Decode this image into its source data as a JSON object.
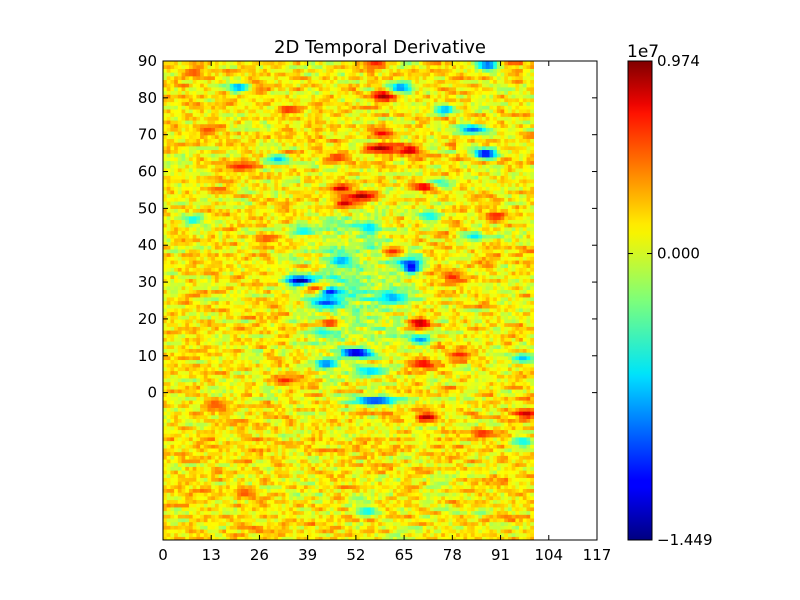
{
  "chart_data": {
    "type": "heatmap",
    "title": "2D Temporal Derivative",
    "xlabel": "",
    "ylabel": "",
    "x_ticks": [
      0,
      13,
      26,
      39,
      52,
      65,
      78,
      91,
      104,
      117
    ],
    "y_ticks": [
      0,
      10,
      20,
      30,
      40,
      50,
      60,
      70,
      80,
      90
    ],
    "xlim": [
      0,
      117
    ],
    "ylim": [
      -40,
      90
    ],
    "data_extent": {
      "x": [
        0,
        100
      ],
      "y": [
        -40,
        90
      ]
    },
    "colormap": "jet",
    "colorbar": {
      "min": -1.449,
      "max": 0.974,
      "zero": 0.0,
      "tick_labels": [
        "0.974",
        "0.000",
        "−1.449"
      ],
      "offset_label": "1e7"
    },
    "grid": false,
    "patterns": {
      "background_level": 0.1,
      "blue_streaks": [
        {
          "x": 20.5,
          "y": 83,
          "len": 6,
          "v": -0.8
        },
        {
          "x": 8,
          "y": 47,
          "len": 6,
          "v": -0.6
        },
        {
          "x": 37,
          "y": 30.5,
          "len": 8,
          "v": -1.4
        },
        {
          "x": 44.5,
          "y": 27.5,
          "len": 6,
          "v": -1.3
        },
        {
          "x": 44,
          "y": 24.5,
          "len": 8,
          "v": -1.0
        },
        {
          "x": 52,
          "y": 11,
          "len": 8,
          "v": -1.4
        },
        {
          "x": 57.5,
          "y": -2,
          "len": 12,
          "v": -1.1
        },
        {
          "x": 64,
          "y": 83,
          "len": 6,
          "v": -0.9
        },
        {
          "x": 87,
          "y": 65,
          "len": 6,
          "v": -1.3
        },
        {
          "x": 83.5,
          "y": 71.5,
          "len": 8,
          "v": -0.9
        },
        {
          "x": 87.5,
          "y": 89,
          "len": 6,
          "v": -1.0
        },
        {
          "x": 73.5,
          "y": 57,
          "len": 8,
          "v": -0.6
        },
        {
          "x": 66.5,
          "y": 35.5,
          "len": 8,
          "v": -0.9
        },
        {
          "x": 67,
          "y": 34,
          "len": 4,
          "v": -1.3
        },
        {
          "x": 69.5,
          "y": 14.5,
          "len": 6,
          "v": -0.8
        },
        {
          "x": 44,
          "y": 8,
          "len": 6,
          "v": -0.9
        },
        {
          "x": 48,
          "y": 36,
          "len": 6,
          "v": -0.8
        },
        {
          "x": 55.5,
          "y": 45,
          "len": 6,
          "v": -0.7
        },
        {
          "x": 72,
          "y": 48,
          "len": 6,
          "v": -0.6
        },
        {
          "x": 62,
          "y": 26,
          "len": 6,
          "v": -0.8
        },
        {
          "x": 56,
          "y": 6,
          "len": 8,
          "v": -0.7
        },
        {
          "x": 38,
          "y": 44,
          "len": 6,
          "v": -0.6
        },
        {
          "x": 31,
          "y": 63.5,
          "len": 6,
          "v": -0.7
        },
        {
          "x": 76,
          "y": 77,
          "len": 6,
          "v": -0.8
        },
        {
          "x": 43,
          "y": 17,
          "len": 6,
          "v": -0.6
        },
        {
          "x": 84,
          "y": 42.5,
          "len": 6,
          "v": -0.6
        },
        {
          "x": 97,
          "y": 9.5,
          "len": 6,
          "v": -0.7
        },
        {
          "x": 97,
          "y": -13,
          "len": 6,
          "v": -0.6
        },
        {
          "x": 55,
          "y": -32,
          "len": 6,
          "v": -0.6
        }
      ],
      "red_streaks": [
        {
          "x": 53.5,
          "y": 53.5,
          "len": 8,
          "v": 0.9
        },
        {
          "x": 48,
          "y": 55.5,
          "len": 6,
          "v": 0.8
        },
        {
          "x": 59.5,
          "y": 80.5,
          "len": 6,
          "v": 0.9
        },
        {
          "x": 58.5,
          "y": 66.5,
          "len": 8,
          "v": 0.9
        },
        {
          "x": 49,
          "y": 51.5,
          "len": 6,
          "v": 0.8
        },
        {
          "x": 66.5,
          "y": 66,
          "len": 6,
          "v": 0.85
        },
        {
          "x": 70.5,
          "y": 56,
          "len": 6,
          "v": 0.8
        },
        {
          "x": 69.5,
          "y": 19,
          "len": 6,
          "v": 0.9
        },
        {
          "x": 71,
          "y": -6.5,
          "len": 6,
          "v": 0.85
        },
        {
          "x": 98,
          "y": -5.5,
          "len": 6,
          "v": 0.8
        },
        {
          "x": 33.5,
          "y": 77,
          "len": 6,
          "v": 0.6
        },
        {
          "x": 21,
          "y": 61.5,
          "len": 8,
          "v": 0.6
        },
        {
          "x": 59,
          "y": 70.5,
          "len": 6,
          "v": 0.7
        },
        {
          "x": 57.5,
          "y": 89.5,
          "len": 6,
          "v": 0.6
        },
        {
          "x": 47,
          "y": 64,
          "len": 6,
          "v": 0.6
        },
        {
          "x": 62,
          "y": 38.5,
          "len": 6,
          "v": 0.6
        },
        {
          "x": 45,
          "y": 19,
          "len": 6,
          "v": 0.6
        },
        {
          "x": 70,
          "y": 8,
          "len": 6,
          "v": 0.7
        },
        {
          "x": 33,
          "y": 3.5,
          "len": 6,
          "v": 0.6
        },
        {
          "x": 80,
          "y": 10.5,
          "len": 6,
          "v": 0.6
        },
        {
          "x": 78,
          "y": 31.5,
          "len": 6,
          "v": 0.6
        },
        {
          "x": 28,
          "y": 42,
          "len": 6,
          "v": 0.5
        },
        {
          "x": 12,
          "y": 71.5,
          "len": 6,
          "v": 0.5
        },
        {
          "x": 8,
          "y": 87,
          "len": 6,
          "v": 0.5
        },
        {
          "x": 90,
          "y": 48,
          "len": 6,
          "v": 0.6
        },
        {
          "x": 41,
          "y": 28.5,
          "len": 6,
          "v": 0.5
        },
        {
          "x": 86,
          "y": -11,
          "len": 6,
          "v": 0.6
        },
        {
          "x": 14,
          "y": -3,
          "len": 6,
          "v": 0.5
        },
        {
          "x": 22,
          "y": -27,
          "len": 6,
          "v": 0.5
        }
      ]
    }
  }
}
